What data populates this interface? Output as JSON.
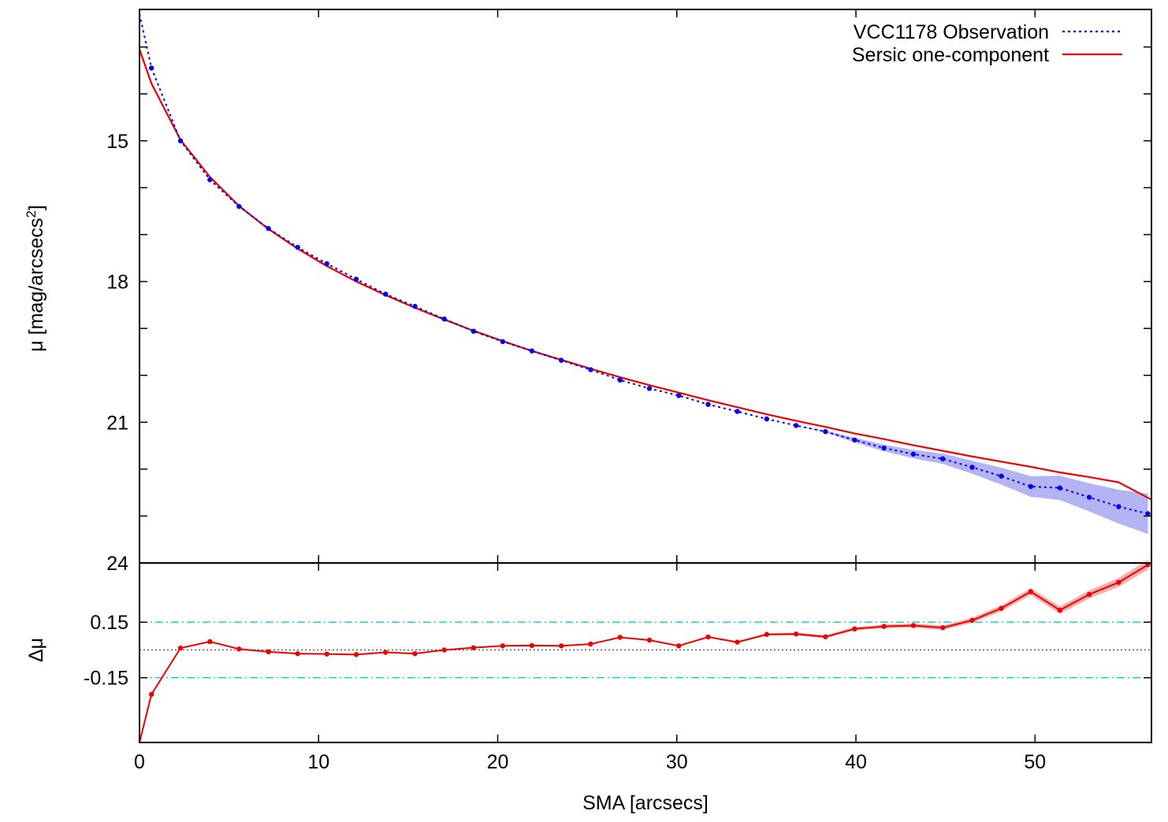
{
  "chart_data": [
    {
      "type": "line",
      "panel": "profile",
      "xlabel": "SMA [arcsecs]",
      "ylabel_main": "μ [mag/arcsecs",
      "ylabel_sup": "2",
      "ylabel_close": "]",
      "xlim": [
        0,
        56.5
      ],
      "ylim": [
        24,
        12.2
      ],
      "y_inverted": true,
      "xticks": [
        0,
        10,
        20,
        30,
        40,
        50
      ],
      "xtick_labels": [
        "0",
        "10",
        "20",
        "30",
        "40",
        "50"
      ],
      "yticks": [
        15,
        18,
        21,
        24
      ],
      "ytick_labels": [
        "15",
        "18",
        "21",
        "24"
      ],
      "legend_position": "top-right",
      "series": [
        {
          "name": "VCC1178 Observation",
          "style": "dotted-with-points",
          "color": "#0000ee",
          "band_color": "#b4b4f4",
          "x": [
            0,
            0.67,
            2.29,
            3.93,
            5.56,
            7.2,
            8.83,
            10.46,
            12.1,
            13.74,
            15.38,
            17.02,
            18.65,
            20.28,
            21.91,
            23.55,
            25.19,
            26.83,
            28.47,
            30.11,
            31.75,
            33.38,
            35.02,
            36.66,
            38.3,
            39.93,
            41.57,
            43.21,
            44.85,
            46.49,
            48.12,
            49.76,
            51.39,
            53.03,
            54.67,
            56.3
          ],
          "y": [
            12.3,
            13.45,
            15.0,
            15.83,
            16.4,
            16.87,
            17.27,
            17.62,
            17.95,
            18.27,
            18.53,
            18.8,
            19.06,
            19.28,
            19.48,
            19.68,
            19.88,
            20.1,
            20.28,
            20.43,
            20.62,
            20.77,
            20.93,
            21.07,
            21.2,
            21.38,
            21.55,
            21.68,
            21.78,
            21.96,
            22.15,
            22.37,
            22.4,
            22.6,
            22.8,
            22.95
          ],
          "band_upper": [
            12.3,
            13.45,
            15.0,
            15.83,
            16.4,
            16.87,
            17.27,
            17.62,
            17.95,
            18.27,
            18.53,
            18.8,
            19.06,
            19.28,
            19.48,
            19.68,
            19.88,
            20.1,
            20.28,
            20.43,
            20.62,
            20.77,
            20.93,
            21.07,
            21.18,
            21.33,
            21.48,
            21.59,
            21.67,
            21.82,
            21.97,
            22.15,
            22.14,
            22.3,
            22.44,
            22.52
          ],
          "band_lower": [
            12.3,
            13.45,
            15.0,
            15.83,
            16.4,
            16.87,
            17.27,
            17.62,
            17.95,
            18.27,
            18.53,
            18.8,
            19.06,
            19.28,
            19.48,
            19.68,
            19.88,
            20.1,
            20.28,
            20.43,
            20.62,
            20.77,
            20.93,
            21.07,
            21.22,
            21.43,
            21.62,
            21.77,
            21.89,
            22.1,
            22.33,
            22.59,
            22.66,
            22.9,
            23.16,
            23.38
          ]
        },
        {
          "name": "Sersic one-component",
          "style": "solid",
          "color": "#ee0000",
          "x": [
            0,
            0.67,
            2.29,
            3.93,
            5.56,
            7.2,
            8.83,
            10.46,
            12.1,
            13.74,
            15.38,
            17.02,
            18.65,
            20.28,
            21.91,
            23.55,
            25.19,
            26.83,
            28.47,
            30.11,
            31.75,
            33.38,
            35.02,
            36.66,
            38.3,
            39.93,
            41.57,
            43.21,
            44.85,
            46.49,
            48.12,
            49.76,
            51.39,
            53.03,
            54.67,
            56.5
          ],
          "y": [
            13.05,
            13.78,
            14.98,
            15.77,
            16.39,
            16.88,
            17.3,
            17.67,
            18.0,
            18.29,
            18.56,
            18.81,
            19.05,
            19.27,
            19.48,
            19.67,
            19.86,
            20.04,
            20.21,
            20.37,
            20.53,
            20.68,
            20.83,
            20.97,
            21.1,
            21.24,
            21.36,
            21.49,
            21.61,
            21.73,
            21.84,
            21.95,
            22.07,
            22.17,
            22.28,
            22.65
          ]
        }
      ]
    },
    {
      "type": "line",
      "panel": "residual",
      "ylabel": "Δμ",
      "xlim": [
        0,
        56.5
      ],
      "ylim": [
        -0.5,
        0.47
      ],
      "yticks": [
        0.15,
        -0.15
      ],
      "ytick_labels": [
        "0.15",
        "-0.15"
      ],
      "reference_lines": [
        {
          "y": 0.15,
          "style": "dash-dot",
          "color": "#00d0d0"
        },
        {
          "y": 0.0,
          "style": "dotted",
          "color": "#555555"
        },
        {
          "y": -0.15,
          "style": "dash-dot",
          "color": "#00d0d0"
        }
      ],
      "series": [
        {
          "style": "solid-with-points",
          "color": "#ee0000",
          "band_color": "#f4b0b0",
          "x": [
            0,
            0.67,
            2.29,
            3.93,
            5.56,
            7.2,
            8.83,
            10.46,
            12.1,
            13.74,
            15.38,
            17.02,
            18.65,
            20.28,
            21.91,
            23.55,
            25.19,
            26.83,
            28.47,
            30.11,
            31.75,
            33.38,
            35.02,
            36.66,
            38.3,
            39.93,
            41.57,
            43.21,
            44.85,
            46.49,
            48.12,
            49.76,
            51.39,
            53.03,
            54.67,
            56.3
          ],
          "y": [
            -0.5,
            -0.24,
            0.01,
            0.045,
            0.005,
            -0.01,
            -0.02,
            -0.022,
            -0.025,
            -0.013,
            -0.02,
            0.0,
            0.012,
            0.022,
            0.024,
            0.022,
            0.032,
            0.068,
            0.053,
            0.022,
            0.07,
            0.042,
            0.084,
            0.086,
            0.071,
            0.114,
            0.127,
            0.132,
            0.12,
            0.16,
            0.225,
            0.315,
            0.215,
            0.3,
            0.365,
            0.46
          ],
          "band_halfwidth": [
            0,
            0,
            0,
            0,
            0,
            0,
            0,
            0,
            0,
            0,
            0,
            0,
            0,
            0,
            0,
            0,
            0,
            0,
            0,
            0,
            0.004,
            0.005,
            0.006,
            0.007,
            0.008,
            0.009,
            0.01,
            0.011,
            0.012,
            0.014,
            0.016,
            0.019,
            0.02,
            0.022,
            0.024,
            0.027
          ]
        }
      ]
    }
  ]
}
